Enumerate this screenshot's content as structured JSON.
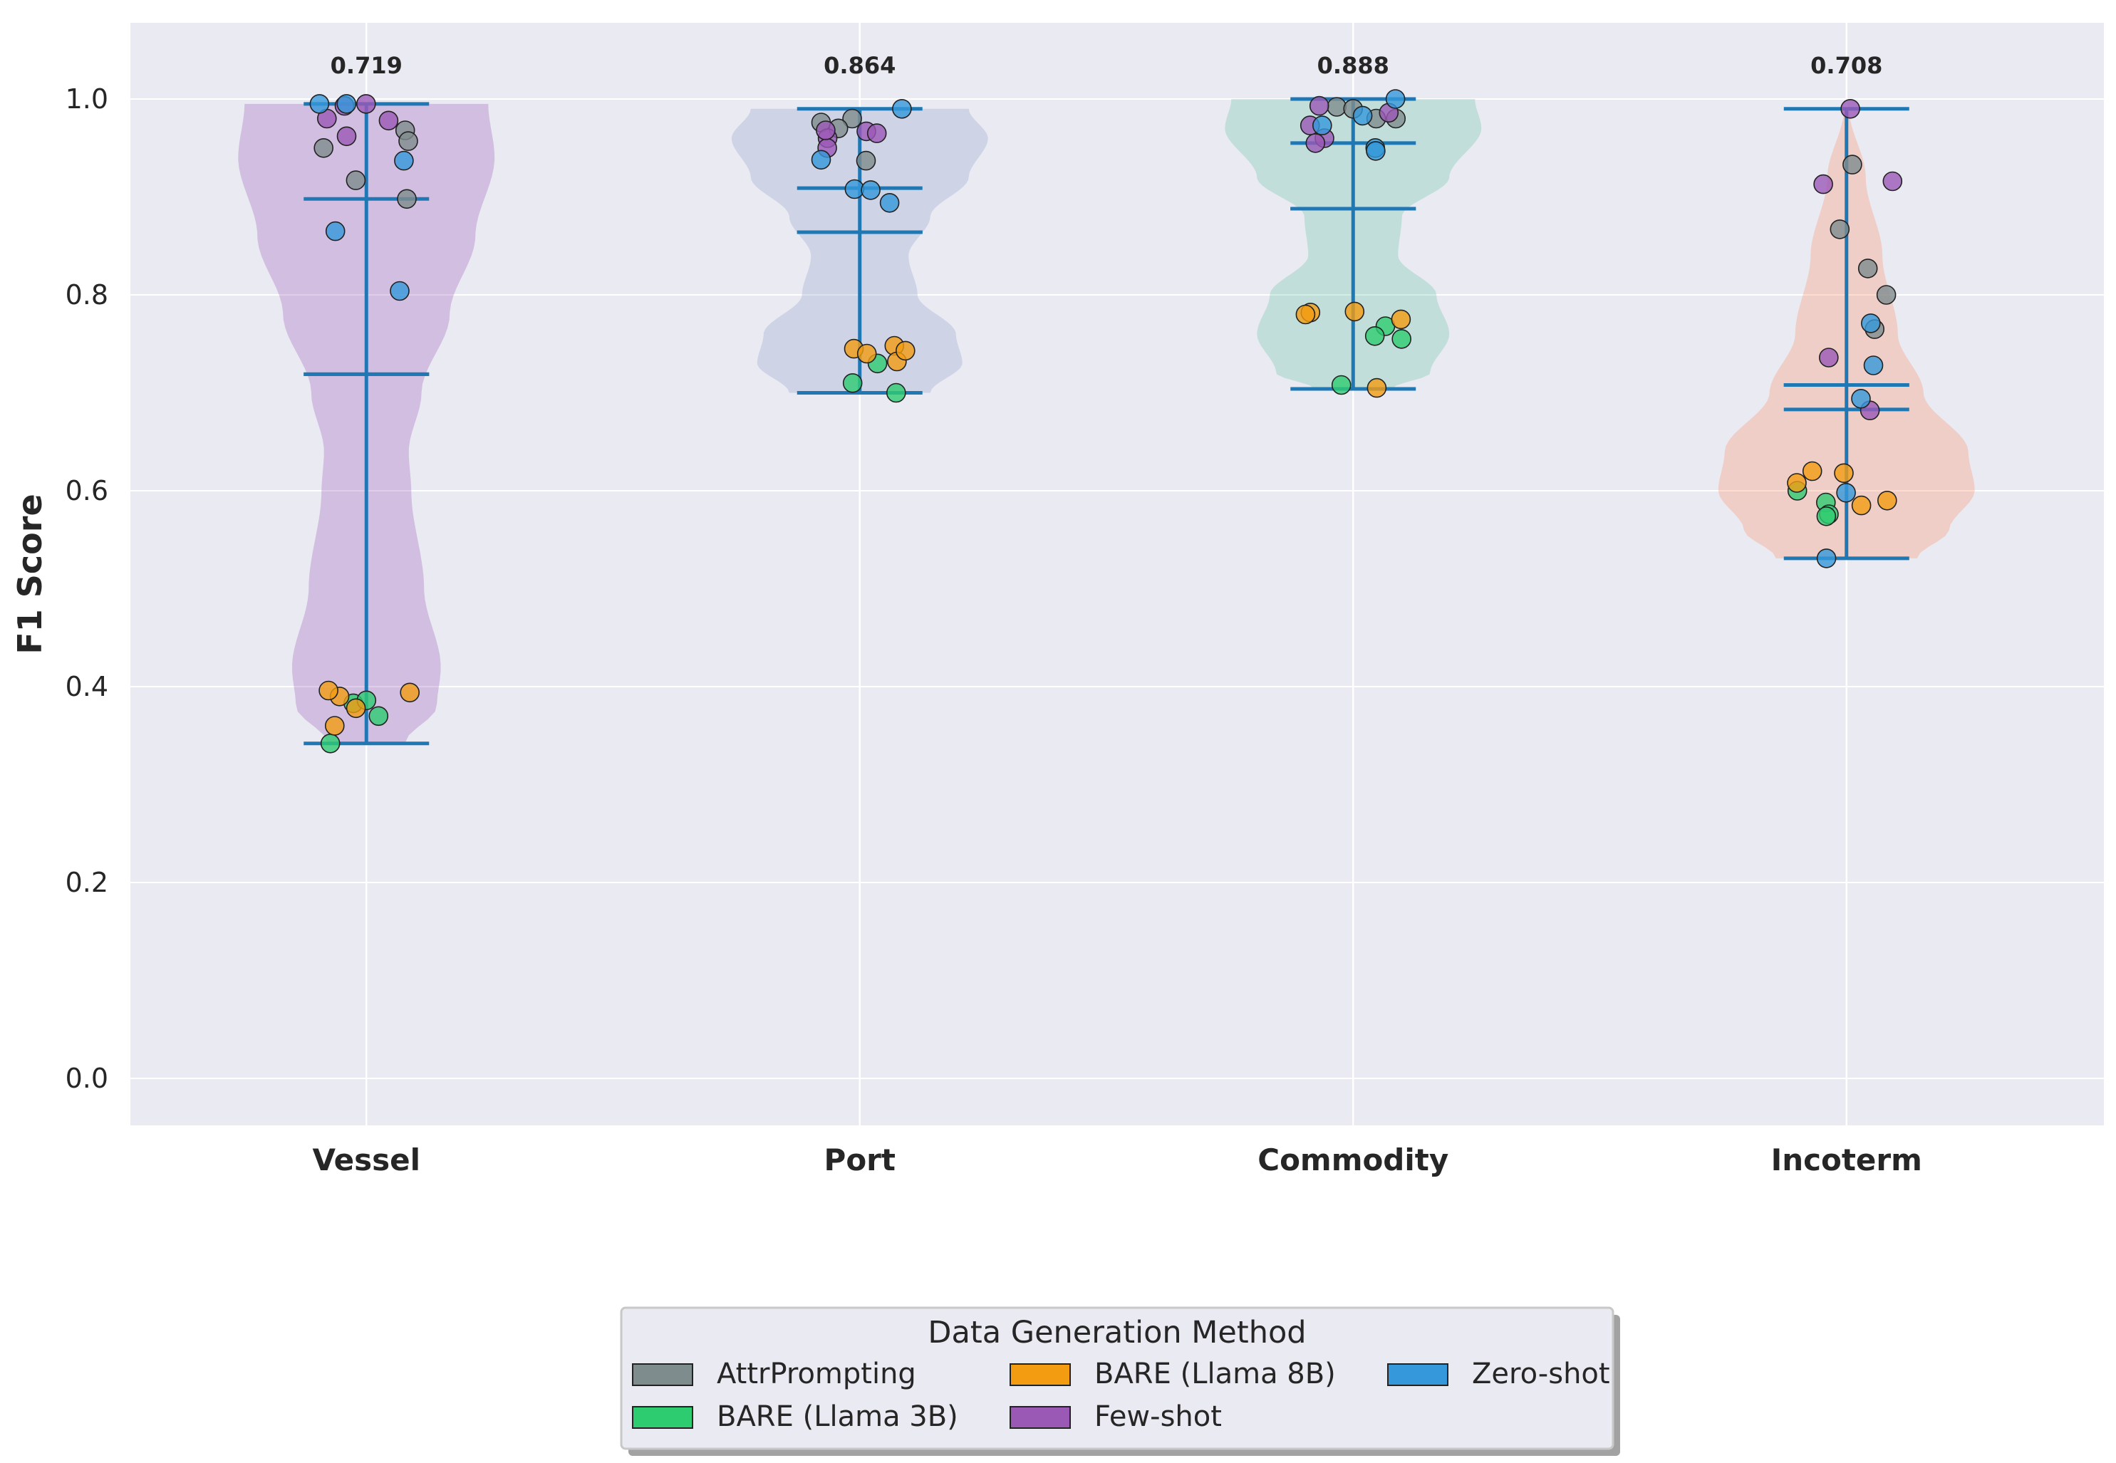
{
  "chart_data": {
    "type": "violin",
    "ylabel": "F1 Score",
    "xlabel": "",
    "ylim": [
      -0.046,
      1.08
    ],
    "yticks": [
      0.0,
      0.2,
      0.4,
      0.6,
      0.8,
      1.0
    ],
    "ytick_labels": [
      "0.0",
      "0.2",
      "0.4",
      "0.6",
      "0.8",
      "1.0"
    ],
    "grid": true,
    "legend": {
      "title": "Data Generation Method",
      "placement": "bottom-center",
      "columns": 3
    },
    "series": [
      {
        "name": "AttrPrompting",
        "color": "#7f8c8d"
      },
      {
        "name": "BARE (Llama 3B)",
        "color": "#2ecc71"
      },
      {
        "name": "BARE (Llama 8B)",
        "color": "#f39c12"
      },
      {
        "name": "Few-shot",
        "color": "#9b59b6"
      },
      {
        "name": "Zero-shot",
        "color": "#3498db"
      }
    ],
    "categories": [
      {
        "name": "Vessel",
        "violin_color": "#9b59b6",
        "median": 0.719,
        "median_label": "0.719",
        "min": 0.342,
        "max": 0.995,
        "q1": 0.719,
        "q3": 0.898,
        "density": [
          [
            0.342,
            0.3
          ],
          [
            0.38,
            0.55
          ],
          [
            0.42,
            0.58
          ],
          [
            0.5,
            0.45
          ],
          [
            0.6,
            0.35
          ],
          [
            0.64,
            0.33
          ],
          [
            0.7,
            0.43
          ],
          [
            0.78,
            0.65
          ],
          [
            0.86,
            0.85
          ],
          [
            0.94,
            1.0
          ],
          [
            0.995,
            0.95
          ]
        ],
        "points": [
          {
            "s": 0,
            "y": 0.968
          },
          {
            "s": 0,
            "y": 0.957
          },
          {
            "s": 0,
            "y": 0.95
          },
          {
            "s": 0,
            "y": 0.917
          },
          {
            "s": 0,
            "y": 0.898
          },
          {
            "s": 1,
            "y": 0.342
          },
          {
            "s": 1,
            "y": 0.383
          },
          {
            "s": 1,
            "y": 0.386
          },
          {
            "s": 1,
            "y": 0.37
          },
          {
            "s": 2,
            "y": 0.39
          },
          {
            "s": 2,
            "y": 0.396
          },
          {
            "s": 2,
            "y": 0.394
          },
          {
            "s": 2,
            "y": 0.378
          },
          {
            "s": 2,
            "y": 0.36
          },
          {
            "s": 3,
            "y": 0.995
          },
          {
            "s": 3,
            "y": 0.993
          },
          {
            "s": 3,
            "y": 0.98
          },
          {
            "s": 3,
            "y": 0.978
          },
          {
            "s": 3,
            "y": 0.962
          },
          {
            "s": 4,
            "y": 0.995
          },
          {
            "s": 4,
            "y": 0.995
          },
          {
            "s": 4,
            "y": 0.937
          },
          {
            "s": 4,
            "y": 0.865
          },
          {
            "s": 4,
            "y": 0.804
          }
        ]
      },
      {
        "name": "Port",
        "violin_color": "#8da0cb",
        "median": 0.864,
        "median_label": "0.864",
        "min": 0.7,
        "max": 0.99,
        "q1": 0.864,
        "q3": 0.909,
        "density": [
          [
            0.7,
            0.55
          ],
          [
            0.73,
            0.8
          ],
          [
            0.76,
            0.75
          ],
          [
            0.8,
            0.45
          ],
          [
            0.84,
            0.38
          ],
          [
            0.88,
            0.55
          ],
          [
            0.92,
            0.85
          ],
          [
            0.96,
            1.0
          ],
          [
            0.99,
            0.85
          ]
        ],
        "points": [
          {
            "s": 0,
            "y": 0.976
          },
          {
            "s": 0,
            "y": 0.98
          },
          {
            "s": 0,
            "y": 0.97
          },
          {
            "s": 0,
            "y": 0.937
          },
          {
            "s": 1,
            "y": 0.7
          },
          {
            "s": 1,
            "y": 0.71
          },
          {
            "s": 1,
            "y": 0.73
          },
          {
            "s": 2,
            "y": 0.745
          },
          {
            "s": 2,
            "y": 0.748
          },
          {
            "s": 2,
            "y": 0.732
          },
          {
            "s": 2,
            "y": 0.74
          },
          {
            "s": 2,
            "y": 0.743
          },
          {
            "s": 3,
            "y": 0.967
          },
          {
            "s": 3,
            "y": 0.965
          },
          {
            "s": 3,
            "y": 0.96
          },
          {
            "s": 3,
            "y": 0.95
          },
          {
            "s": 3,
            "y": 0.968
          },
          {
            "s": 4,
            "y": 0.99
          },
          {
            "s": 4,
            "y": 0.938
          },
          {
            "s": 4,
            "y": 0.908
          },
          {
            "s": 4,
            "y": 0.907
          },
          {
            "s": 4,
            "y": 0.894
          }
        ]
      },
      {
        "name": "Commodity",
        "violin_color": "#66c2a5",
        "median": 0.888,
        "median_label": "0.888",
        "min": 0.704,
        "max": 1.0,
        "q1": 0.888,
        "q3": 0.955,
        "density": [
          [
            0.704,
            0.3
          ],
          [
            0.72,
            0.6
          ],
          [
            0.76,
            0.75
          ],
          [
            0.8,
            0.65
          ],
          [
            0.84,
            0.35
          ],
          [
            0.88,
            0.38
          ],
          [
            0.92,
            0.75
          ],
          [
            0.97,
            1.0
          ],
          [
            1.0,
            0.95
          ]
        ],
        "points": [
          {
            "s": 0,
            "y": 0.992
          },
          {
            "s": 0,
            "y": 0.98
          },
          {
            "s": 0,
            "y": 0.99
          },
          {
            "s": 0,
            "y": 0.98
          },
          {
            "s": 1,
            "y": 0.768
          },
          {
            "s": 1,
            "y": 0.758
          },
          {
            "s": 1,
            "y": 0.755
          },
          {
            "s": 1,
            "y": 0.708
          },
          {
            "s": 2,
            "y": 0.782
          },
          {
            "s": 2,
            "y": 0.783
          },
          {
            "s": 2,
            "y": 0.78
          },
          {
            "s": 2,
            "y": 0.775
          },
          {
            "s": 2,
            "y": 0.705
          },
          {
            "s": 3,
            "y": 0.993
          },
          {
            "s": 3,
            "y": 0.986
          },
          {
            "s": 3,
            "y": 0.973
          },
          {
            "s": 3,
            "y": 0.96
          },
          {
            "s": 3,
            "y": 0.955
          },
          {
            "s": 4,
            "y": 1.0
          },
          {
            "s": 4,
            "y": 0.983
          },
          {
            "s": 4,
            "y": 0.973
          },
          {
            "s": 4,
            "y": 0.95
          },
          {
            "s": 4,
            "y": 0.947
          }
        ]
      },
      {
        "name": "Incoterm",
        "violin_color": "#fc8d62",
        "median": 0.708,
        "median_label": "0.708",
        "min": 0.531,
        "max": 0.99,
        "q1": 0.683,
        "q3": 0.708,
        "density": [
          [
            0.531,
            0.55
          ],
          [
            0.56,
            0.8
          ],
          [
            0.6,
            1.0
          ],
          [
            0.64,
            0.95
          ],
          [
            0.7,
            0.6
          ],
          [
            0.76,
            0.4
          ],
          [
            0.84,
            0.28
          ],
          [
            0.92,
            0.15
          ],
          [
            0.99,
            0.02
          ]
        ],
        "points": [
          {
            "s": 0,
            "y": 0.933
          },
          {
            "s": 0,
            "y": 0.867
          },
          {
            "s": 0,
            "y": 0.827
          },
          {
            "s": 0,
            "y": 0.8
          },
          {
            "s": 0,
            "y": 0.765
          },
          {
            "s": 1,
            "y": 0.6
          },
          {
            "s": 1,
            "y": 0.588
          },
          {
            "s": 1,
            "y": 0.576
          },
          {
            "s": 1,
            "y": 0.574
          },
          {
            "s": 2,
            "y": 0.62
          },
          {
            "s": 2,
            "y": 0.618
          },
          {
            "s": 2,
            "y": 0.608
          },
          {
            "s": 2,
            "y": 0.59
          },
          {
            "s": 2,
            "y": 0.585
          },
          {
            "s": 3,
            "y": 0.99
          },
          {
            "s": 3,
            "y": 0.916
          },
          {
            "s": 3,
            "y": 0.913
          },
          {
            "s": 3,
            "y": 0.736
          },
          {
            "s": 3,
            "y": 0.682
          },
          {
            "s": 4,
            "y": 0.771
          },
          {
            "s": 4,
            "y": 0.728
          },
          {
            "s": 4,
            "y": 0.694
          },
          {
            "s": 4,
            "y": 0.598
          },
          {
            "s": 4,
            "y": 0.531
          }
        ]
      }
    ]
  }
}
